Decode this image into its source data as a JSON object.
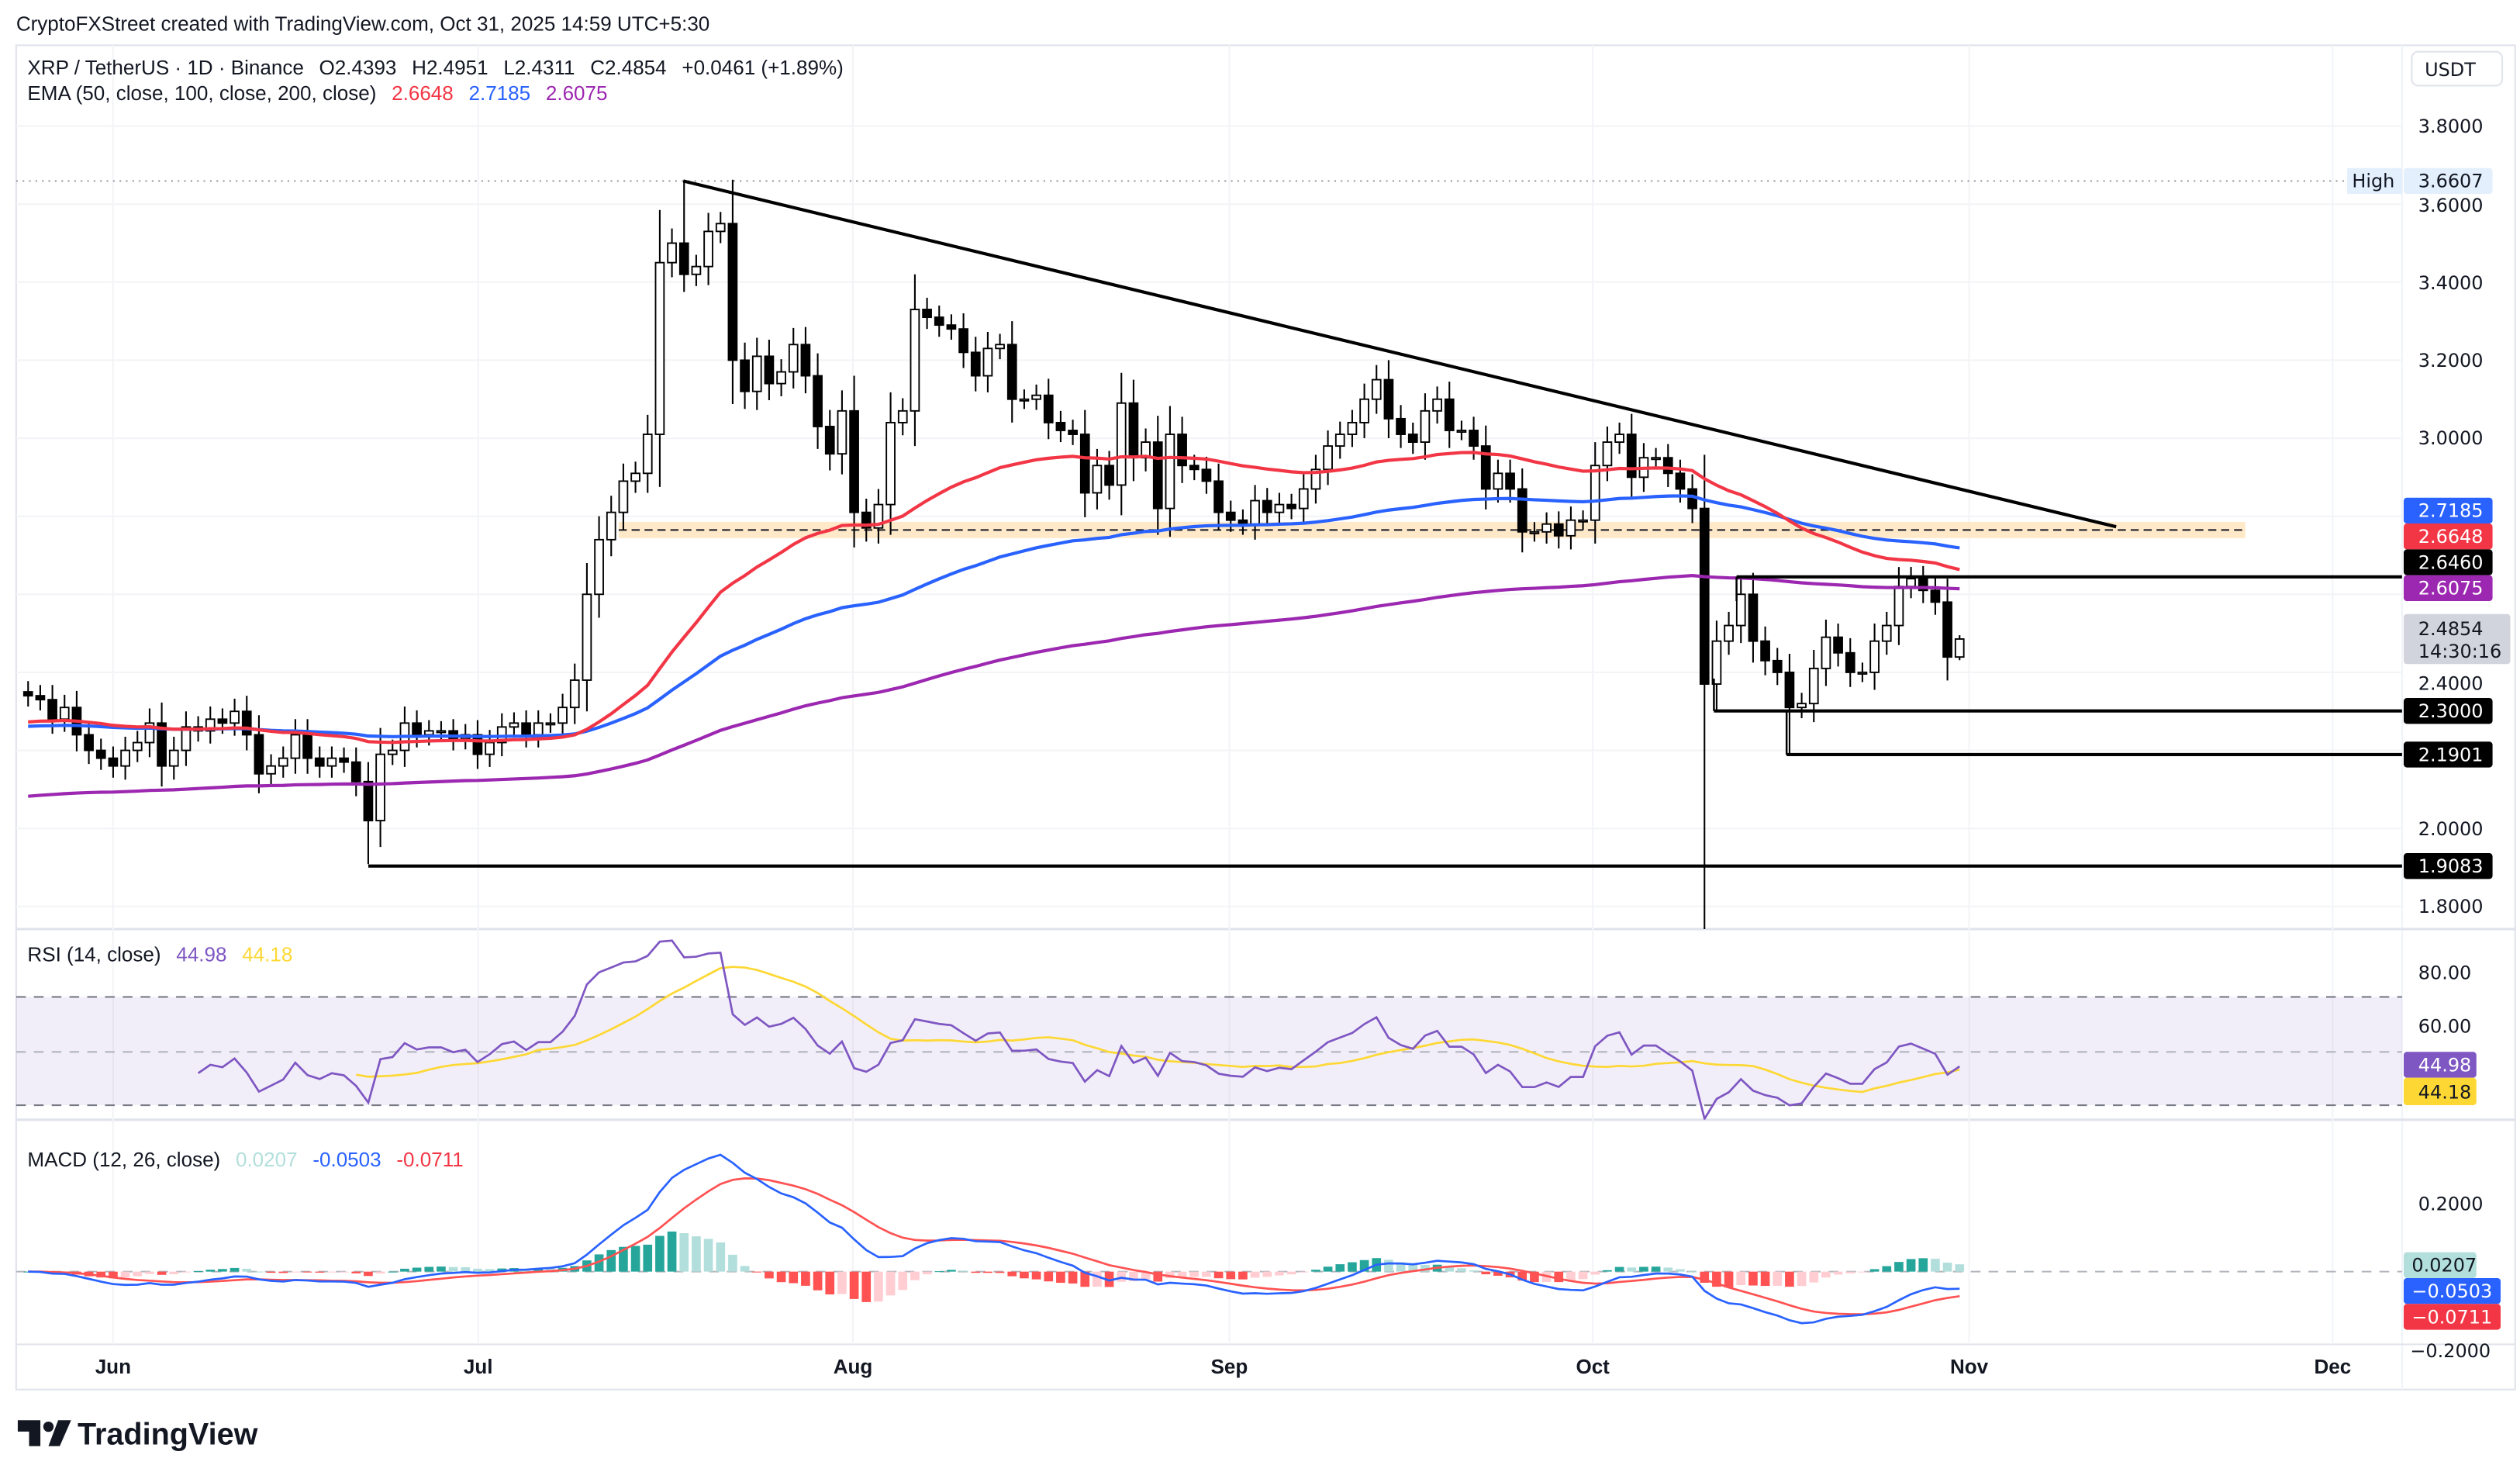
{
  "watermark": "CryptoFXStreet created with TradingView.com, Oct 31, 2025 14:59 UTC+5:30",
  "legend": {
    "symbol": "XRP / TetherUS · 1D · Binance",
    "open": "O2.4393",
    "high": "H2.4951",
    "low": "L2.4311",
    "close": "C2.4854",
    "change": "+0.0461 (+1.89%)",
    "ema_label": "EMA (50, close, 100, close, 200, close)",
    "ema50": "2.6648",
    "ema100": "2.7185",
    "ema200": "2.6075"
  },
  "currency_button": "USDT",
  "high_marker": {
    "label": "High",
    "value": "3.6607"
  },
  "price_axis": {
    "ticks": [
      "3.8000",
      "3.6000",
      "3.4000",
      "3.2000",
      "3.0000",
      "2.0000",
      "1.8000"
    ],
    "partial_tick": "2.4000"
  },
  "price_badges": {
    "ema100": "2.7185",
    "ema50": "2.6648",
    "resistance": "2.6460",
    "ema200": "2.6075",
    "last": "2.4854",
    "countdown": "14:30:16",
    "support1": "2.3000",
    "support2": "2.1901",
    "support3": "1.9083"
  },
  "rsi": {
    "label": "RSI (14, close)",
    "value": "44.98",
    "ma_value": "44.18",
    "ticks": [
      "80.00",
      "60.00"
    ]
  },
  "macd": {
    "label": "MACD (12, 26, close)",
    "hist": "0.0207",
    "macd": "-0.0503",
    "signal": "-0.0711",
    "ticks": [
      "0.2000",
      "−0.2000"
    ],
    "hist_badge": "0.0207",
    "macd_badge": "−0.0503",
    "signal_badge": "−0.0711"
  },
  "time_axis": [
    "Jun",
    "Jul",
    "Aug",
    "Sep",
    "Oct",
    "Nov",
    "Dec"
  ],
  "logo": "TradingView",
  "colors": {
    "ema50": "#f23645",
    "ema100": "#2962ff",
    "ema200": "#9c27b0",
    "rsi": "#7e57c2",
    "rsi_ma": "#fdd835",
    "macd": "#2962ff",
    "signal": "#ff5252",
    "hist_up": "#26a69a",
    "hist_down": "#ff5252",
    "zone": "#ffe0b2"
  },
  "chart_data": {
    "type": "candlestick",
    "start_date": "2025-05-25",
    "end_date": "2025-10-31",
    "interval": "1D",
    "ylim": [
      1.75,
      3.9
    ],
    "close": [
      2.34,
      2.33,
      2.28,
      2.31,
      2.24,
      2.2,
      2.18,
      2.16,
      2.2,
      2.22,
      2.27,
      2.16,
      2.2,
      2.26,
      2.25,
      2.28,
      2.27,
      2.3,
      2.24,
      2.14,
      2.16,
      2.18,
      2.24,
      2.18,
      2.16,
      2.18,
      2.17,
      2.12,
      2.02,
      2.19,
      2.2,
      2.27,
      2.24,
      2.25,
      2.25,
      2.23,
      2.24,
      2.19,
      2.22,
      2.26,
      2.27,
      2.24,
      2.27,
      2.27,
      2.31,
      2.38,
      2.6,
      2.74,
      2.81,
      2.89,
      2.91,
      3.01,
      3.45,
      3.5,
      3.42,
      3.44,
      3.53,
      3.55,
      3.2,
      3.12,
      3.21,
      3.14,
      3.17,
      3.24,
      3.16,
      3.03,
      2.96,
      3.07,
      2.81,
      2.77,
      2.83,
      3.04,
      3.07,
      3.33,
      3.31,
      3.29,
      3.28,
      3.22,
      3.16,
      3.23,
      3.24,
      3.1,
      3.1,
      3.11,
      3.04,
      3.02,
      3.01,
      2.86,
      2.93,
      2.88,
      3.09,
      2.95,
      2.99,
      2.82,
      3.01,
      2.93,
      2.92,
      2.89,
      2.81,
      2.79,
      2.78,
      2.84,
      2.81,
      2.83,
      2.82,
      2.87,
      2.92,
      2.98,
      3.01,
      3.04,
      3.1,
      3.15,
      3.05,
      3.01,
      2.99,
      3.07,
      3.1,
      3.02,
      3.02,
      2.98,
      2.87,
      2.91,
      2.87,
      2.76,
      2.76,
      2.78,
      2.75,
      2.79,
      2.79,
      2.93,
      2.99,
      3.01,
      2.9,
      2.95,
      2.95,
      2.91,
      2.87,
      2.82,
      2.37,
      2.48,
      2.52,
      2.6,
      2.48,
      2.43,
      2.4,
      2.31,
      2.32,
      2.41,
      2.49,
      2.45,
      2.4,
      2.4,
      2.48,
      2.52,
      2.62,
      2.64,
      2.61,
      2.58,
      2.4393,
      2.4854
    ],
    "last_candle": {
      "open": 2.4393,
      "high": 2.4951,
      "low": 2.4311,
      "close": 2.4854
    },
    "notable_extremes": [
      {
        "date": "2025-06-22",
        "low": 1.9083
      },
      {
        "date": "2025-07-18",
        "high": 3.6607
      },
      {
        "date": "2025-10-10",
        "low": 1.6
      },
      {
        "date": "2025-10-11",
        "low": 2.3
      },
      {
        "date": "2025-10-17",
        "low": 2.1901
      }
    ],
    "ema_start": {
      "ema50": 2.27,
      "ema100": 2.26,
      "ema200": 2.08
    },
    "annotations": {
      "trendline": [
        {
          "date": "2025-07-18",
          "price": 3.6607
        },
        {
          "date": "2025-11-15",
          "price": 2.775
        }
      ],
      "resistance_zone": [
        2.7,
        2.75
      ],
      "horizontal_levels": [
        2.646,
        2.3,
        2.1901,
        1.9083
      ]
    },
    "rsi_levels": [
      70,
      50,
      30
    ]
  }
}
